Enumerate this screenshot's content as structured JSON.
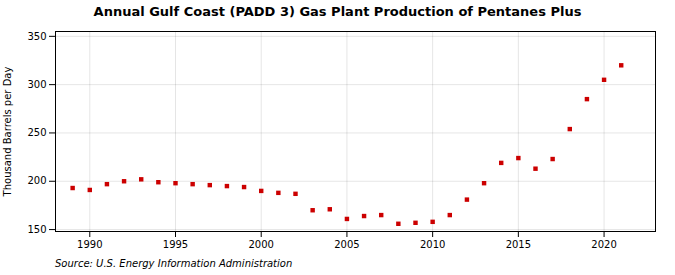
{
  "chart_data": {
    "type": "scatter",
    "title": "Annual Gulf Coast (PADD 3) Gas Plant Production of Pentanes Plus",
    "ylabel": "Thousand Barrels per Day",
    "source": "Source: U.S. Energy Information Administration",
    "x": [
      1989,
      1990,
      1991,
      1992,
      1993,
      1994,
      1995,
      1996,
      1997,
      1998,
      1999,
      2000,
      2001,
      2002,
      2003,
      2004,
      2005,
      2006,
      2007,
      2008,
      2009,
      2010,
      2011,
      2012,
      2013,
      2014,
      2015,
      2016,
      2017,
      2018,
      2019,
      2020,
      2021
    ],
    "values": [
      193,
      191,
      197,
      200,
      202,
      199,
      198,
      197,
      196,
      195,
      194,
      190,
      188,
      187,
      170,
      171,
      161,
      164,
      165,
      156,
      157,
      158,
      165,
      181,
      198,
      219,
      224,
      213,
      223,
      254,
      285,
      305,
      320
    ],
    "color": "#cc0000",
    "marker": "square",
    "xlim": [
      1988,
      2023
    ],
    "ylim": [
      148,
      355
    ],
    "xticks": [
      1990,
      1995,
      2000,
      2005,
      2010,
      2015,
      2020
    ],
    "yticks": [
      150,
      200,
      250,
      300,
      350
    ],
    "grid": true
  }
}
